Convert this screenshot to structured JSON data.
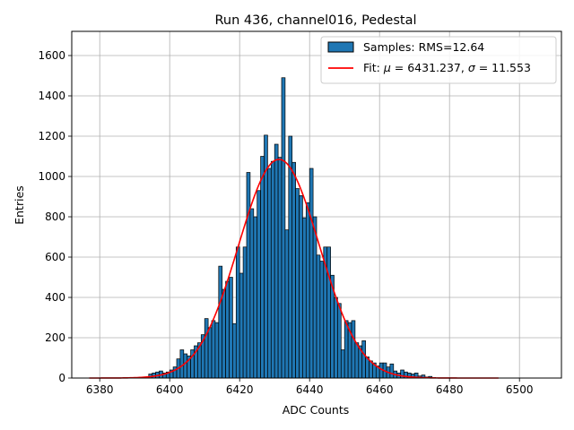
{
  "chart_data": {
    "type": "bar",
    "title": "Run 436, channel016, Pedestal",
    "xlabel": "ADC Counts",
    "ylabel": "Entries",
    "xlim": [
      6372,
      6512
    ],
    "ylim": [
      0,
      1720
    ],
    "xticks": [
      6380,
      6400,
      6420,
      6440,
      6460,
      6480,
      6500
    ],
    "yticks": [
      0,
      200,
      400,
      600,
      800,
      1000,
      1200,
      1400,
      1600
    ],
    "grid": true,
    "legend_position": "top-right",
    "bin_width": 1,
    "histogram": {
      "name": "Samples: RMS=12.64",
      "color": "#1f77b4",
      "edgecolor": "#000000",
      "bins": [
        [
          6394,
          20
        ],
        [
          6395,
          25
        ],
        [
          6396,
          30
        ],
        [
          6397,
          35
        ],
        [
          6398,
          25
        ],
        [
          6399,
          30
        ],
        [
          6400,
          40
        ],
        [
          6401,
          55
        ],
        [
          6402,
          95
        ],
        [
          6403,
          140
        ],
        [
          6404,
          120
        ],
        [
          6405,
          110
        ],
        [
          6406,
          140
        ],
        [
          6407,
          160
        ],
        [
          6408,
          175
        ],
        [
          6409,
          215
        ],
        [
          6410,
          295
        ],
        [
          6411,
          250
        ],
        [
          6412,
          285
        ],
        [
          6413,
          275
        ],
        [
          6414,
          555
        ],
        [
          6415,
          440
        ],
        [
          6416,
          480
        ],
        [
          6417,
          500
        ],
        [
          6418,
          270
        ],
        [
          6419,
          650
        ],
        [
          6420,
          520
        ],
        [
          6421,
          650
        ],
        [
          6422,
          1020
        ],
        [
          6423,
          840
        ],
        [
          6424,
          800
        ],
        [
          6425,
          930
        ],
        [
          6426,
          1100
        ],
        [
          6427,
          1205
        ],
        [
          6428,
          1040
        ],
        [
          6429,
          1075
        ],
        [
          6430,
          1160
        ],
        [
          6431,
          1095
        ],
        [
          6432,
          1490
        ],
        [
          6433,
          735
        ],
        [
          6434,
          1200
        ],
        [
          6435,
          1070
        ],
        [
          6436,
          940
        ],
        [
          6437,
          905
        ],
        [
          6438,
          795
        ],
        [
          6439,
          870
        ],
        [
          6440,
          1040
        ],
        [
          6441,
          800
        ],
        [
          6442,
          610
        ],
        [
          6443,
          580
        ],
        [
          6444,
          650
        ],
        [
          6445,
          650
        ],
        [
          6446,
          510
        ],
        [
          6447,
          400
        ],
        [
          6448,
          370
        ],
        [
          6449,
          140
        ],
        [
          6450,
          285
        ],
        [
          6451,
          275
        ],
        [
          6452,
          285
        ],
        [
          6453,
          175
        ],
        [
          6454,
          160
        ],
        [
          6455,
          185
        ],
        [
          6456,
          105
        ],
        [
          6457,
          85
        ],
        [
          6458,
          75
        ],
        [
          6459,
          60
        ],
        [
          6460,
          75
        ],
        [
          6461,
          75
        ],
        [
          6462,
          55
        ],
        [
          6463,
          70
        ],
        [
          6464,
          35
        ],
        [
          6465,
          25
        ],
        [
          6466,
          40
        ],
        [
          6467,
          30
        ],
        [
          6468,
          25
        ],
        [
          6469,
          20
        ],
        [
          6470,
          25
        ],
        [
          6471,
          10
        ],
        [
          6472,
          15
        ],
        [
          6473,
          5
        ],
        [
          6474,
          8
        ],
        [
          6475,
          3
        ]
      ]
    },
    "fit": {
      "name": "Fit: μ = 6431.237, σ = 11.553",
      "label_prefix": "Fit: ",
      "mu_label": "μ",
      "mu_text": " = 6431.237, ",
      "sigma_label": "σ",
      "sigma_text": " = 11.553",
      "type": "gaussian",
      "mu": 6431.237,
      "sigma": 11.553,
      "amplitude": 1085,
      "x_range": [
        6377,
        6494
      ],
      "color": "#ff0000"
    }
  }
}
